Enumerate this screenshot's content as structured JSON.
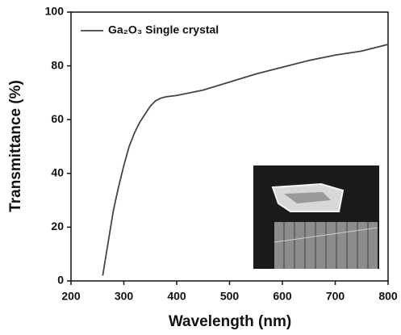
{
  "chart_data": {
    "type": "line",
    "x_label": "Wavelength (nm)",
    "y_label": "Transmittance (%)",
    "x": [
      260,
      265,
      270,
      280,
      290,
      300,
      310,
      320,
      330,
      340,
      350,
      360,
      370,
      380,
      400,
      450,
      500,
      550,
      600,
      650,
      700,
      750,
      800
    ],
    "series": [
      {
        "name": "Ga₂O₃ Single crystal",
        "color": "#444444",
        "values": [
          2,
          8,
          14,
          26,
          35,
          43,
          50,
          55,
          59,
          62,
          65,
          67,
          68,
          68.5,
          69,
          71,
          74,
          77,
          79.5,
          82,
          84,
          85.5,
          88
        ]
      }
    ],
    "xlim": [
      200,
      800
    ],
    "xticks": [
      200,
      300,
      400,
      500,
      600,
      700,
      800
    ],
    "ylim": [
      0,
      100
    ],
    "yticks": [
      0,
      20,
      40,
      60,
      80,
      100
    ],
    "legend": "upper left"
  }
}
